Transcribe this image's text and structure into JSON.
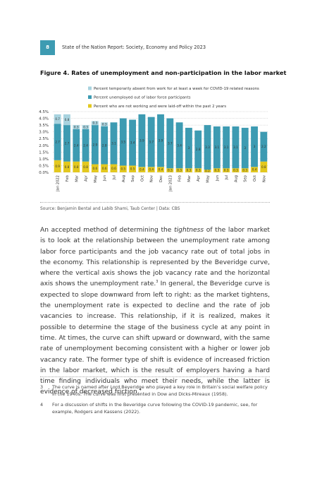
{
  "header": {
    "page_number": "8",
    "title": "State of the Nation Report: Society, Economy and Policy 2023"
  },
  "figure": {
    "title": "Figure 4. Rates of unemployment and non-participation in the labor market",
    "chart_data": {
      "type": "bar",
      "stacked": true,
      "categories": [
        "Jan 2022",
        "Feb",
        "Mar",
        "Apr",
        "May",
        "Jun",
        "Jul",
        "Aug",
        "Sep",
        "Oct",
        "Nov",
        "Dec",
        "Jan 2023",
        "Feb",
        "Mar",
        "Apr",
        "May",
        "Jun",
        "Jul",
        "Aug",
        "Sep",
        "Oct",
        "Nov"
      ],
      "series": [
        {
          "name": "Percent who are not working and were laid-off within the past 2 years",
          "color": "#e3c81e",
          "values": [
            0.9,
            0.8,
            0.8,
            0.8,
            0.6,
            0.6,
            0.6,
            0.5,
            0.5,
            0.4,
            0.4,
            0.4,
            0.3,
            0.3,
            0.3,
            0.3,
            0.2,
            0.3,
            0.3,
            0.3,
            0.3,
            0.4,
            0.8
          ]
        },
        {
          "name": "Percent unemployed out of labor force participants",
          "color": "#3d9bb2",
          "values": [
            2.7,
            2.7,
            2.4,
            2.4,
            2.9,
            2.8,
            3.1,
            3.5,
            3.4,
            3.9,
            3.7,
            3.9,
            3.7,
            3.4,
            3.0,
            2.8,
            3.3,
            3.1,
            3.1,
            3.1,
            3.0,
            3.0,
            2.2
          ]
        },
        {
          "name": "Percent temporarily absent from work for at least a week for COVID-19 related reasons",
          "color": "#a8d3df",
          "values": [
            0.7,
            0.8,
            0.3,
            0.3,
            0.3,
            0.3,
            null,
            null,
            null,
            null,
            null,
            null,
            null,
            null,
            null,
            null,
            null,
            null,
            null,
            null,
            null,
            null,
            null
          ]
        }
      ],
      "ylim": [
        0,
        4.5
      ],
      "yticks": [
        {
          "value": 0,
          "label": "0.0%"
        },
        {
          "value": 0.5,
          "label": "0.5%"
        },
        {
          "value": 1,
          "label": "1.0%"
        },
        {
          "value": 1.5,
          "label": "1.5%"
        },
        {
          "value": 2,
          "label": "2.0%"
        },
        {
          "value": 2.5,
          "label": "2.5%"
        },
        {
          "value": 3,
          "label": "3.0%"
        },
        {
          "value": 3.5,
          "label": "3.5%"
        },
        {
          "value": 4,
          "label": "4.0%"
        },
        {
          "value": 4.5,
          "label": "4.5%"
        }
      ],
      "grid": true
    }
  },
  "source": "Source: Benjamin Bental and Labib Shami, Taub Center | Data: CBS",
  "body": [
    "An accepted method of determining the ",
    "tightness",
    " of the labor market is to look at the relationship between the unemployment rate among labor force participants and the job vacancy rate out of total jobs in the economy. This relationship is represented by the Beveridge curve, where the vertical axis shows the job vacancy rate and the horizontal axis shows the unemployment rate.",
    "3",
    " In general, the Beveridge curve is expected to slope downward from left to right: as the market tightens, the unemployment rate is expected to decline and the rate of job vacancies to increase. This relationship, if it is realized, makes it possible to determine the stage of the business cycle at any point in time. At times, the curve can shift upward or downward, with the same rate of unemployment becoming consistent with a higher or lower job vacancy rate. The former type of shift is evidence of increased friction in the labor market, which is the result of employers having a hard time finding individuals who meet their needs, while the latter is evidence of decreased friction.",
    "4"
  ],
  "footnotes": [
    {
      "number": "3",
      "text": "The curve is named after Lord Beveridge who played a key role in Britain’s social welfare policy in the 1940s. The curve was first presented in Dow and Dicks-Mireaux (1958)."
    },
    {
      "number": "4",
      "text": "For a discussion of shifts in the Beveridge curve following the COVID-19 pandemic, see, for example, Rodgers and Kassens (2022)."
    }
  ]
}
